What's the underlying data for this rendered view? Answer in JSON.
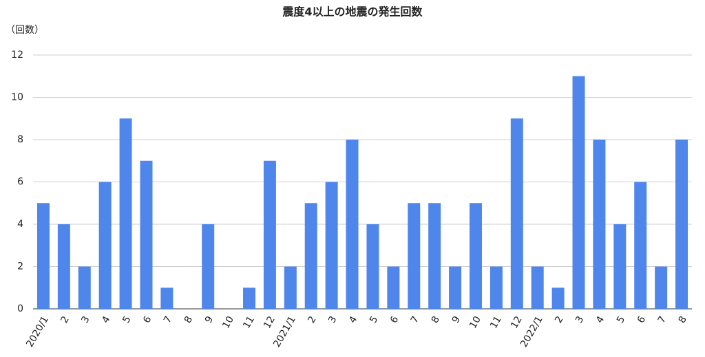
{
  "chart_data": {
    "type": "bar",
    "title": "震度4以上の地震の発生回数",
    "y_label": "（回数）",
    "categories": [
      "2020/1",
      "2",
      "3",
      "4",
      "5",
      "6",
      "7",
      "8",
      "9",
      "10",
      "11",
      "12",
      "2021/1",
      "2",
      "3",
      "4",
      "5",
      "6",
      "7",
      "8",
      "9",
      "10",
      "11",
      "12",
      "2022/1",
      "2",
      "3",
      "4",
      "5",
      "6",
      "7",
      "8"
    ],
    "values": [
      5,
      4,
      2,
      6,
      9,
      7,
      1,
      0,
      4,
      0,
      1,
      7,
      2,
      5,
      6,
      8,
      4,
      2,
      5,
      5,
      2,
      5,
      2,
      9,
      2,
      1,
      11,
      8,
      4,
      6,
      2,
      8
    ],
    "color": "#4f86ec",
    "ylim": [
      0,
      12
    ],
    "yticks": [
      0,
      2,
      4,
      6,
      8,
      10,
      12
    ],
    "grid": true
  }
}
